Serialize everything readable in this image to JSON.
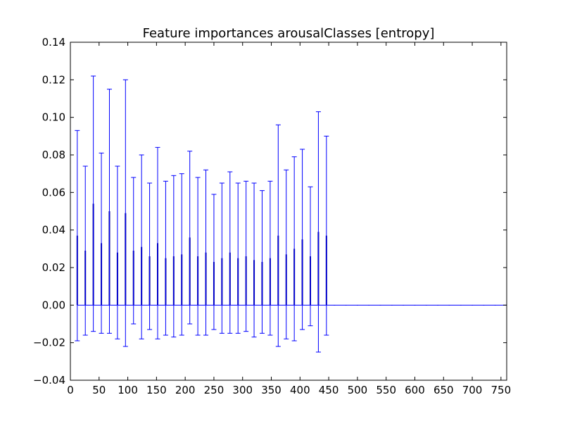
{
  "chart_data": {
    "type": "bar",
    "title": "Feature importances arousalClasses [entropy]",
    "xlabel": "",
    "ylabel": "",
    "xlim": [
      0,
      760
    ],
    "ylim": [
      -0.04,
      0.14
    ],
    "x_ticks": [
      0,
      50,
      100,
      150,
      200,
      250,
      300,
      350,
      400,
      450,
      500,
      550,
      600,
      650,
      700,
      750
    ],
    "y_ticks": [
      "−0.04",
      "−0.02",
      "0.00",
      "0.02",
      "0.04",
      "0.06",
      "0.08",
      "0.10",
      "0.12",
      "0.14"
    ],
    "grid": false,
    "series": [
      {
        "x": [
          12,
          26,
          40,
          54,
          68,
          82,
          96,
          110,
          124,
          138,
          152,
          166,
          180,
          194,
          208,
          222,
          236,
          250,
          264,
          278,
          292,
          306,
          320,
          334,
          348,
          362,
          376,
          390,
          404,
          418,
          432,
          446,
          460,
          480,
          500,
          520,
          540,
          560,
          580,
          600,
          620,
          640,
          660,
          680,
          700,
          720,
          740,
          755
        ],
        "values": [
          0.037,
          0.029,
          0.054,
          0.033,
          0.05,
          0.028,
          0.049,
          0.029,
          0.031,
          0.026,
          0.033,
          0.025,
          0.026,
          0.027,
          0.036,
          0.026,
          0.028,
          0.023,
          0.025,
          0.028,
          0.025,
          0.026,
          0.024,
          0.023,
          0.025,
          0.037,
          0.027,
          0.03,
          0.035,
          0.026,
          0.039,
          0.037,
          0,
          0,
          0,
          0,
          0,
          0,
          0,
          0,
          0,
          0,
          0,
          0,
          0,
          0,
          0,
          0
        ],
        "errors": [
          0.056,
          0.045,
          0.068,
          0.048,
          0.065,
          0.046,
          0.071,
          0.039,
          0.049,
          0.039,
          0.051,
          0.041,
          0.043,
          0.043,
          0.046,
          0.042,
          0.044,
          0.036,
          0.04,
          0.043,
          0.04,
          0.04,
          0.041,
          0.038,
          0.041,
          0.059,
          0.045,
          0.049,
          0.048,
          0.037,
          0.064,
          0.053,
          0,
          0,
          0,
          0,
          0,
          0,
          0,
          0,
          0,
          0,
          0,
          0,
          0,
          0,
          0,
          0
        ]
      }
    ],
    "colors": {
      "bar": "#00008b",
      "errorbar": "#0000ff",
      "axis": "#000000"
    }
  }
}
